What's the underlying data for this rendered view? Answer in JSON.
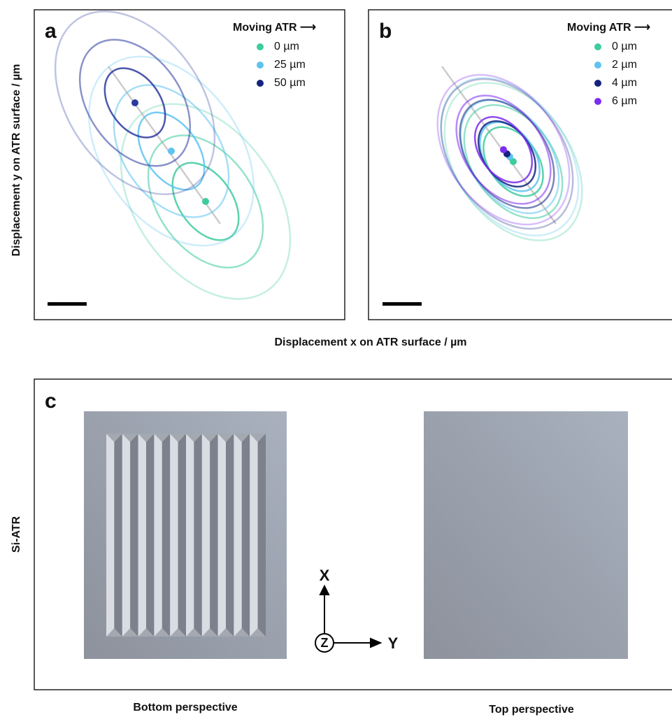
{
  "y_axis_label": "Displacement y on ATR surface / µm",
  "x_axis_label": "Displacement x on ATR surface / µm",
  "panels": [
    {
      "label": "a",
      "legend_title": "Moving ATR ⟶",
      "legend": [
        "0 µm",
        "25 µm",
        "50 µm"
      ]
    },
    {
      "label": "b",
      "legend_title": "Moving ATR ⟶",
      "legend": [
        "0 µm",
        "2 µm",
        "4 µm",
        "6 µm"
      ]
    },
    {
      "label": "c",
      "row_label": "Si-ATR",
      "axes": [
        "X",
        "Y",
        "Z"
      ],
      "captions": [
        "Bottom perspective",
        "Top perspective"
      ]
    }
  ]
}
